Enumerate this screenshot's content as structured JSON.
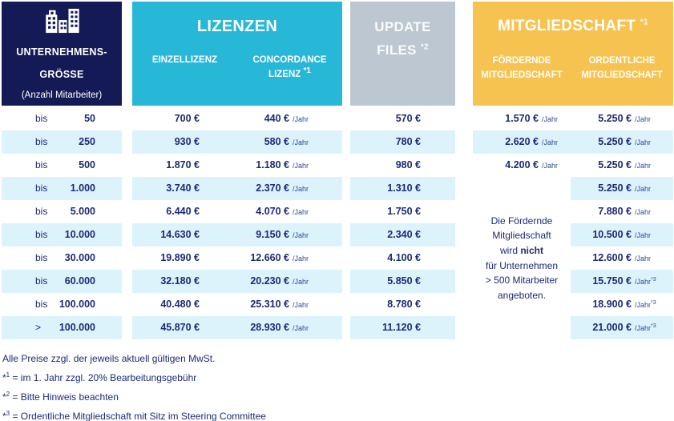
{
  "colors": {
    "navy": "#141a56",
    "cyan": "#27b7d7",
    "gray": "#bcc7d1",
    "yellow": "#f6c351",
    "stripe": "#dcf3fb",
    "text": "#1b2a76",
    "per_year": "#2c4a96"
  },
  "header": {
    "company": {
      "icon": "buildings-icon",
      "line1": "UNTERNEHMENS-",
      "line2": "GRÖSSE",
      "line3": "(Anzahl Mitarbeiter)"
    },
    "licenses": {
      "title": "LIZENZEN",
      "sub1": "EINZELLIZENZ",
      "sub2_line1": "CONCORDANCE",
      "sub2_line2": "LIZENZ",
      "sub2_sup": "*1"
    },
    "update": {
      "line1": "UPDATE",
      "line2": "FILES",
      "sup": "*2"
    },
    "membership": {
      "title": "MITGLIEDSCHAFT",
      "sup": "*1",
      "sub1_line1": "FÖRDERNDE",
      "sub1_line2": "MITGLIEDSCHAFT",
      "sub2_line1": "ORDENTLICHE",
      "sub2_line2": "MITGLIEDSCHAFT"
    }
  },
  "per_year_label": "/Jahr",
  "rows": [
    {
      "op": "bis",
      "size": "50",
      "einzellizenz": "700 €",
      "concordance": "440 €",
      "update_files": "570 €",
      "foerdernde": "1.570 €",
      "ordentliche": "5.250 €",
      "ordentliche_sup": ""
    },
    {
      "op": "bis",
      "size": "250",
      "einzellizenz": "930 €",
      "concordance": "580 €",
      "update_files": "780 €",
      "foerdernde": "2.620 €",
      "ordentliche": "5.250 €",
      "ordentliche_sup": ""
    },
    {
      "op": "bis",
      "size": "500",
      "einzellizenz": "1.870 €",
      "concordance": "1.180 €",
      "update_files": "980 €",
      "foerdernde": "4.200 €",
      "ordentliche": "5.250 €",
      "ordentliche_sup": ""
    },
    {
      "op": "bis",
      "size": "1.000",
      "einzellizenz": "3.740 €",
      "concordance": "2.370 €",
      "update_files": "1.310 €",
      "foerdernde": null,
      "ordentliche": "5.250 €",
      "ordentliche_sup": ""
    },
    {
      "op": "bis",
      "size": "5.000",
      "einzellizenz": "6.440 €",
      "concordance": "4.070 €",
      "update_files": "1.750 €",
      "foerdernde": null,
      "ordentliche": "7.880 €",
      "ordentliche_sup": ""
    },
    {
      "op": "bis",
      "size": "10.000",
      "einzellizenz": "14.630 €",
      "concordance": "9.150 €",
      "update_files": "2.340 €",
      "foerdernde": null,
      "ordentliche": "10.500 €",
      "ordentliche_sup": ""
    },
    {
      "op": "bis",
      "size": "30.000",
      "einzellizenz": "19.890 €",
      "concordance": "12.660 €",
      "update_files": "4.100 €",
      "foerdernde": null,
      "ordentliche": "12.600 €",
      "ordentliche_sup": ""
    },
    {
      "op": "bis",
      "size": "60.000",
      "einzellizenz": "32.180 €",
      "concordance": "20.230 €",
      "update_files": "5.850 €",
      "foerdernde": null,
      "ordentliche": "15.750 €",
      "ordentliche_sup": "*3"
    },
    {
      "op": "bis",
      "size": "100.000",
      "einzellizenz": "40.480 €",
      "concordance": "25.310 €",
      "update_files": "8.780 €",
      "foerdernde": null,
      "ordentliche": "18.900 €",
      "ordentliche_sup": "*3"
    },
    {
      "op": ">",
      "size": "100.000",
      "einzellizenz": "45.870 €",
      "concordance": "28.930 €",
      "update_files": "11.120 €",
      "foerdernde": null,
      "ordentliche": "21.000 €",
      "ordentliche_sup": "*3"
    }
  ],
  "foerdernde_note": {
    "lines": [
      {
        "text": "Die Fördernde"
      },
      {
        "text": "Mitgliedschaft"
      },
      {
        "pre": "wird ",
        "bold": "nicht"
      },
      {
        "text": "für Unternehmen"
      },
      {
        "text": "> 500 Mitarbeiter"
      },
      {
        "text": "angeboten."
      }
    ]
  },
  "footnotes": [
    {
      "sup": "",
      "text": "Alle Preise zzgl. der jeweils aktuell gültigen MwSt."
    },
    {
      "sup": "*1",
      "text": "= im 1. Jahr zzgl. 20% Bearbeitungsgebühr"
    },
    {
      "sup": "*2",
      "text": "= Bitte Hinweis beachten"
    },
    {
      "sup": "*3",
      "text": "= Ordentliche Mitgliedschaft mit Sitz im Steering Committee"
    }
  ]
}
